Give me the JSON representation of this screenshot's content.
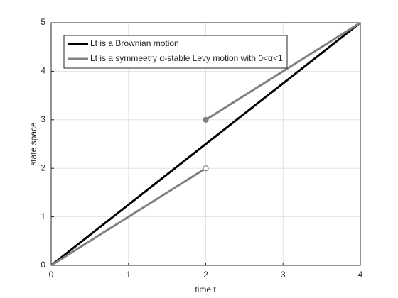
{
  "chart_data": {
    "type": "line",
    "x_label": "time t",
    "y_label": "state space",
    "xlim": [
      0,
      4
    ],
    "ylim": [
      0,
      5
    ],
    "xticks": [
      0,
      1,
      2,
      3,
      4
    ],
    "yticks": [
      0,
      1,
      2,
      3,
      4,
      5
    ],
    "grid": true,
    "legend": "upper left",
    "series": [
      {
        "name": "Lt is a Brownian motion",
        "color": "#000000",
        "x": [
          0,
          4
        ],
        "values": [
          0,
          5
        ]
      },
      {
        "name": "Lt is a symmeetry α-stable Levy motion with 0<α<1",
        "color": "#808080",
        "x": [
          0,
          2,
          2,
          2,
          4
        ],
        "values": [
          0,
          2,
          null,
          3,
          5
        ]
      }
    ]
  }
}
